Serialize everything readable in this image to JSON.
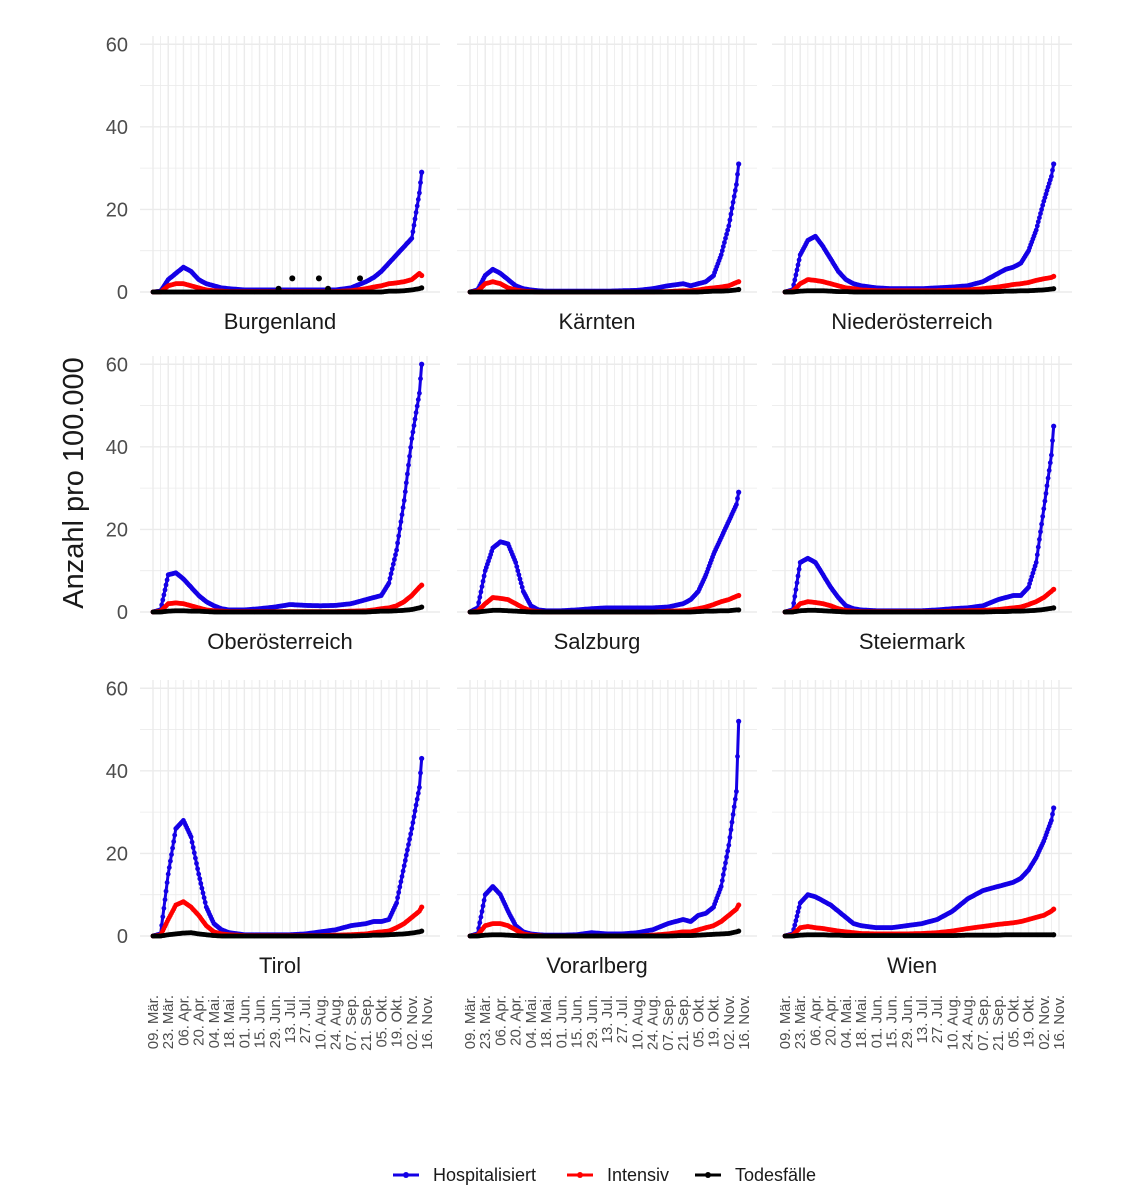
{
  "chart_data": {
    "type": "line",
    "title": "",
    "xlabel": "",
    "ylabel": "Anzahl pro 100.000",
    "ylim": [
      0,
      62
    ],
    "yticks": [
      0,
      20,
      40,
      60
    ],
    "grid": true,
    "legend_position": "bottom",
    "x_week_start": 0,
    "x_week_end": 36,
    "x_ticks": [
      "09. Mär.",
      "23. Mär.",
      "06. Apr.",
      "20. Apr.",
      "04. Mai.",
      "18. Mai.",
      "01. Jun.",
      "15. Jun.",
      "29. Jun.",
      "13. Jul.",
      "27. Jul.",
      "10. Aug.",
      "24. Aug.",
      "07. Sep.",
      "21. Sep.",
      "05. Okt.",
      "19. Okt.",
      "02. Nov.",
      "16. Nov."
    ],
    "x_tick_weeks": [
      0,
      2,
      4,
      6,
      8,
      10,
      12,
      14,
      16,
      18,
      20,
      22,
      24,
      26,
      28,
      30,
      32,
      34,
      36
    ],
    "x_last_week": 35.3,
    "series_meta": [
      {
        "name": "Hospitalisiert",
        "color": "#1400e6"
      },
      {
        "name": "Intensiv",
        "color": "#ff0000"
      },
      {
        "name": "Todesfälle",
        "color": "#000000"
      }
    ],
    "x_weeks": [
      0,
      1,
      2,
      3,
      4,
      5,
      6,
      7,
      8,
      9,
      10,
      12,
      14,
      16,
      18,
      20,
      22,
      24,
      26,
      28,
      29,
      30,
      31,
      32,
      33,
      34,
      35,
      35.3
    ],
    "panels": [
      {
        "name": "Burgenland",
        "Hospitalisiert": [
          0,
          0.2,
          3,
          4.5,
          6,
          5,
          3,
          2,
          1.5,
          1,
          0.8,
          0.5,
          0.5,
          0.5,
          0.5,
          0.5,
          0.5,
          0.5,
          1,
          2.5,
          3.5,
          5,
          7,
          9,
          11,
          13,
          24,
          29
        ],
        "Intensiv": [
          0,
          0,
          1.5,
          2,
          2,
          1.5,
          1,
          0.5,
          0.3,
          0.2,
          0.1,
          0.1,
          0.1,
          0.1,
          0.1,
          0.1,
          0.1,
          0.1,
          0.3,
          0.8,
          1.2,
          1.5,
          2,
          2.2,
          2.5,
          3,
          4.5,
          4
        ],
        "Todesfälle": [
          0,
          0,
          0,
          0,
          0,
          0,
          0,
          0,
          0,
          0,
          0,
          0,
          0,
          0,
          0,
          0,
          0,
          0,
          0,
          0,
          0,
          0,
          0.2,
          0.2,
          0.3,
          0.5,
          0.8,
          1
        ],
        "extra_points": [
          [
            18.3,
            3.3
          ],
          [
            21.8,
            3.3
          ],
          [
            27.2,
            3.3
          ],
          [
            16.5,
            0.8
          ],
          [
            23,
            0.8
          ]
        ]
      },
      {
        "name": "Kärnten",
        "Hospitalisiert": [
          0,
          0.5,
          4,
          5.5,
          4.5,
          3,
          1.5,
          0.8,
          0.5,
          0.3,
          0.2,
          0.2,
          0.2,
          0.2,
          0.2,
          0.3,
          0.4,
          0.8,
          1.5,
          2,
          1.5,
          2,
          2.5,
          4,
          9,
          16,
          26,
          31
        ],
        "Intensiv": [
          0,
          0.2,
          2,
          2.5,
          2,
          1,
          0.5,
          0.2,
          0.1,
          0,
          0,
          0,
          0,
          0,
          0,
          0,
          0,
          0,
          0.1,
          0.3,
          0.3,
          0.5,
          0.8,
          1,
          1.2,
          1.5,
          2.3,
          2.5
        ],
        "Todesfälle": [
          0,
          0,
          0,
          0,
          0,
          0,
          0,
          0,
          0,
          0,
          0,
          0,
          0,
          0,
          0,
          0,
          0,
          0,
          0,
          0,
          0,
          0,
          0.1,
          0.2,
          0.2,
          0.3,
          0.5,
          0.6
        ],
        "extra_points": []
      },
      {
        "name": "Niederösterreich",
        "Hospitalisiert": [
          0,
          0.5,
          9,
          12.5,
          13.5,
          11,
          8,
          5,
          3,
          2,
          1.5,
          1,
          0.8,
          0.8,
          0.8,
          1,
          1.2,
          1.5,
          2.5,
          4.5,
          5.5,
          6,
          7,
          10,
          15,
          22,
          28,
          31
        ],
        "Intensiv": [
          0,
          0.2,
          2,
          3,
          2.8,
          2.5,
          2,
          1.5,
          1,
          0.8,
          0.5,
          0.3,
          0.3,
          0.3,
          0.3,
          0.3,
          0.4,
          0.5,
          0.8,
          1.2,
          1.5,
          1.8,
          2,
          2.3,
          2.8,
          3.2,
          3.5,
          3.8
        ],
        "Todesfälle": [
          0,
          0,
          0.2,
          0.3,
          0.3,
          0.3,
          0.2,
          0.1,
          0.1,
          0,
          0,
          0,
          0,
          0,
          0,
          0,
          0,
          0,
          0,
          0.1,
          0.2,
          0.2,
          0.3,
          0.3,
          0.4,
          0.5,
          0.7,
          0.8
        ],
        "extra_points": []
      },
      {
        "name": "Oberösterreich",
        "Hospitalisiert": [
          0,
          0.5,
          9,
          9.5,
          8,
          6,
          4,
          2.5,
          1.5,
          0.8,
          0.5,
          0.5,
          0.8,
          1.2,
          1.8,
          1.6,
          1.5,
          1.6,
          2,
          3,
          3.5,
          4,
          7,
          15,
          27,
          42,
          53,
          60
        ],
        "Intensiv": [
          0,
          0.2,
          2,
          2.2,
          2,
          1.5,
          1,
          0.5,
          0.3,
          0.2,
          0.1,
          0.1,
          0.1,
          0.1,
          0.1,
          0.1,
          0.1,
          0.1,
          0.2,
          0.3,
          0.5,
          0.8,
          1,
          1.5,
          2.5,
          4,
          6,
          6.5
        ],
        "Todesfälle": [
          0,
          0,
          0.2,
          0.3,
          0.3,
          0.2,
          0.2,
          0.1,
          0,
          0,
          0,
          0,
          0,
          0,
          0,
          0,
          0,
          0,
          0,
          0,
          0.1,
          0.2,
          0.2,
          0.3,
          0.4,
          0.6,
          1,
          1.2
        ],
        "extra_points": []
      },
      {
        "name": "Salzburg",
        "Hospitalisiert": [
          0,
          1,
          10,
          15.5,
          17,
          16.5,
          12,
          5,
          1.5,
          0.5,
          0.3,
          0.3,
          0.5,
          0.8,
          1,
          1,
          1,
          1,
          1.2,
          2,
          3,
          5,
          9,
          14,
          18,
          22,
          26,
          29
        ],
        "Intensiv": [
          0,
          0.2,
          2,
          3.5,
          3.3,
          3,
          2,
          1,
          0.3,
          0.1,
          0,
          0,
          0,
          0,
          0,
          0,
          0,
          0,
          0.2,
          0.3,
          0.5,
          0.8,
          1.2,
          1.8,
          2.5,
          3,
          3.8,
          4
        ],
        "Todesfälle": [
          0,
          0,
          0.2,
          0.4,
          0.4,
          0.3,
          0.2,
          0.1,
          0,
          0,
          0,
          0,
          0,
          0,
          0,
          0,
          0,
          0,
          0,
          0,
          0,
          0.1,
          0.2,
          0.2,
          0.3,
          0.3,
          0.5,
          0.5
        ],
        "extra_points": []
      },
      {
        "name": "Steiermark",
        "Hospitalisiert": [
          0,
          0.5,
          12,
          13,
          12,
          9,
          6,
          3.5,
          1.5,
          0.8,
          0.5,
          0.3,
          0.3,
          0.3,
          0.3,
          0.5,
          0.8,
          1,
          1.5,
          3,
          3.5,
          4,
          4,
          6,
          12,
          25,
          38,
          45
        ],
        "Intensiv": [
          0,
          0.2,
          2,
          2.5,
          2.3,
          2,
          1.5,
          0.8,
          0.4,
          0.2,
          0.1,
          0.1,
          0.1,
          0.1,
          0.1,
          0.1,
          0.2,
          0.3,
          0.4,
          0.6,
          0.8,
          1,
          1.2,
          1.8,
          2.5,
          3.5,
          5,
          5.5
        ],
        "Todesfälle": [
          0,
          0,
          0.3,
          0.4,
          0.4,
          0.3,
          0.2,
          0.1,
          0,
          0,
          0,
          0,
          0,
          0,
          0,
          0,
          0,
          0,
          0,
          0.1,
          0.1,
          0.2,
          0.2,
          0.3,
          0.4,
          0.6,
          0.9,
          1
        ],
        "extra_points": []
      },
      {
        "name": "Tirol",
        "Hospitalisiert": [
          0,
          0.5,
          15,
          26,
          28,
          24,
          15,
          7,
          3,
          1.5,
          0.8,
          0.3,
          0.3,
          0.3,
          0.3,
          0.5,
          1,
          1.5,
          2.5,
          3,
          3.5,
          3.5,
          4,
          8,
          17,
          26,
          36,
          43
        ],
        "Intensiv": [
          0,
          0.2,
          4,
          7.5,
          8.3,
          7,
          5,
          2.5,
          1,
          0.5,
          0.3,
          0.1,
          0.1,
          0.1,
          0.1,
          0.1,
          0.1,
          0.2,
          0.3,
          0.5,
          0.8,
          1,
          1.2,
          2,
          3,
          4.5,
          6,
          7
        ],
        "Todesfälle": [
          0,
          0,
          0.3,
          0.5,
          0.7,
          0.8,
          0.5,
          0.3,
          0.1,
          0,
          0,
          0,
          0,
          0,
          0,
          0,
          0,
          0,
          0,
          0.1,
          0.2,
          0.2,
          0.3,
          0.4,
          0.5,
          0.7,
          1,
          1.2
        ],
        "extra_points": []
      },
      {
        "name": "Vorarlberg",
        "Hospitalisiert": [
          0,
          0.5,
          10,
          12,
          10,
          6,
          2.5,
          1,
          0.5,
          0.3,
          0.2,
          0.2,
          0.3,
          0.8,
          0.5,
          0.5,
          0.8,
          1.5,
          3,
          4,
          3.5,
          5,
          5.5,
          7,
          12,
          22,
          35,
          52
        ],
        "Intensiv": [
          0,
          0.2,
          2.5,
          3,
          3,
          2.5,
          1.5,
          0.5,
          0.2,
          0.1,
          0,
          0,
          0,
          0,
          0,
          0,
          0,
          0.2,
          0.5,
          1,
          1,
          1.5,
          2,
          2.5,
          3.5,
          5,
          6.5,
          7.5
        ],
        "Todesfälle": [
          0,
          0,
          0.2,
          0.3,
          0.3,
          0.2,
          0.1,
          0,
          0,
          0,
          0,
          0,
          0,
          0,
          0,
          0,
          0,
          0,
          0,
          0.1,
          0.1,
          0.2,
          0.3,
          0.4,
          0.5,
          0.6,
          1,
          1.2
        ],
        "extra_points": []
      },
      {
        "name": "Wien",
        "Hospitalisiert": [
          0,
          0.5,
          8,
          10,
          9.5,
          8.5,
          7.5,
          6,
          4.5,
          3,
          2.5,
          2,
          2,
          2.5,
          3,
          4,
          6,
          9,
          11,
          12,
          12.5,
          13,
          14,
          16,
          19,
          23,
          28,
          31
        ],
        "Intensiv": [
          0,
          0.2,
          2,
          2.3,
          2,
          1.8,
          1.5,
          1.2,
          1,
          0.8,
          0.6,
          0.5,
          0.5,
          0.5,
          0.6,
          0.8,
          1.2,
          1.8,
          2.3,
          2.8,
          3,
          3.2,
          3.5,
          4,
          4.5,
          5,
          6,
          6.5
        ],
        "Todesfälle": [
          0,
          0,
          0.2,
          0.3,
          0.3,
          0.3,
          0.2,
          0.2,
          0.1,
          0.1,
          0.1,
          0.1,
          0.1,
          0.1,
          0.1,
          0.1,
          0.1,
          0.2,
          0.2,
          0.2,
          0.3,
          0.3,
          0.3,
          0.3,
          0.3,
          0.3,
          0.3,
          0.3
        ],
        "extra_points": []
      }
    ]
  }
}
